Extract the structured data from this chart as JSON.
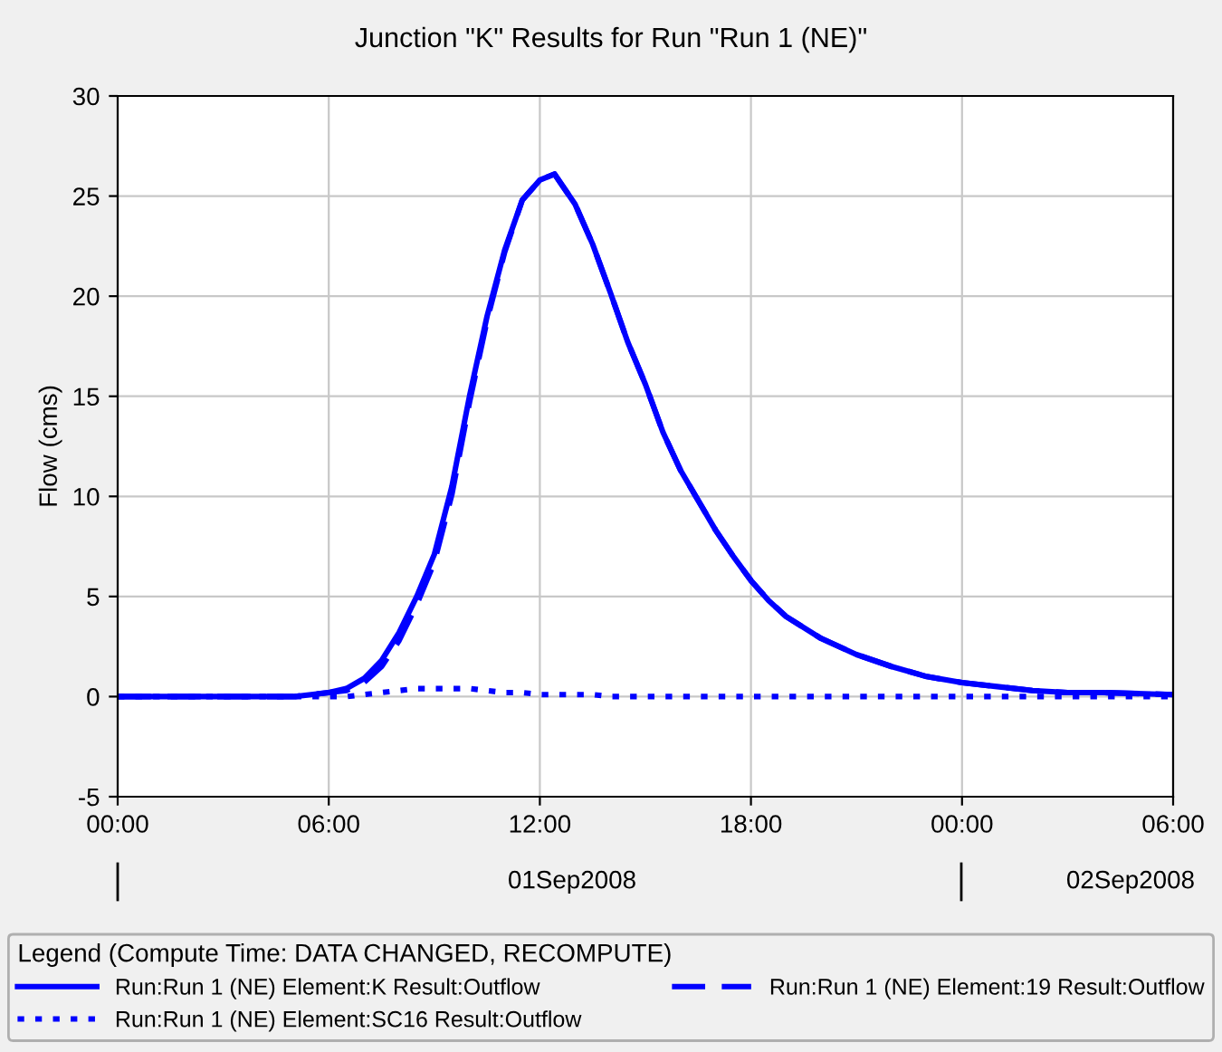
{
  "chart_data": {
    "type": "line",
    "title": "Junction \"K\" Results for Run \"Run 1 (NE)\"",
    "ylabel": "Flow (cms)",
    "x": [
      "2008-09-01T00:00",
      "2008-09-01T02:00",
      "2008-09-01T04:00",
      "2008-09-01T05:00",
      "2008-09-01T05:30",
      "2008-09-01T06:00",
      "2008-09-01T06:30",
      "2008-09-01T07:00",
      "2008-09-01T07:30",
      "2008-09-01T08:00",
      "2008-09-01T08:30",
      "2008-09-01T09:00",
      "2008-09-01T09:30",
      "2008-09-01T10:00",
      "2008-09-01T10:30",
      "2008-09-01T11:00",
      "2008-09-01T11:30",
      "2008-09-01T12:00",
      "2008-09-01T12:25",
      "2008-09-01T13:00",
      "2008-09-01T13:30",
      "2008-09-01T14:00",
      "2008-09-01T14:30",
      "2008-09-01T15:00",
      "2008-09-01T15:30",
      "2008-09-01T16:00",
      "2008-09-01T16:30",
      "2008-09-01T17:00",
      "2008-09-01T17:30",
      "2008-09-01T18:00",
      "2008-09-01T18:30",
      "2008-09-01T19:00",
      "2008-09-01T20:00",
      "2008-09-01T21:00",
      "2008-09-01T22:00",
      "2008-09-01T23:00",
      "2008-09-02T00:00",
      "2008-09-02T01:00",
      "2008-09-02T02:00",
      "2008-09-02T03:00",
      "2008-09-02T04:00",
      "2008-09-02T06:00"
    ],
    "series": [
      {
        "name": "Run:Run 1 (NE) Element:K Result:Outflow",
        "color": "#0000ff",
        "line_style": "solid",
        "values": [
          0,
          0,
          0,
          0,
          0.1,
          0.2,
          0.4,
          0.9,
          1.8,
          3.2,
          5.0,
          7.1,
          10.5,
          15.0,
          19.0,
          22.3,
          24.8,
          25.8,
          26.1,
          24.6,
          22.6,
          20.2,
          17.7,
          15.6,
          13.2,
          11.3,
          9.8,
          8.3,
          7.0,
          5.8,
          4.8,
          4.0,
          2.9,
          2.1,
          1.5,
          1.0,
          0.7,
          0.5,
          0.3,
          0.2,
          0.2,
          0.1
        ]
      },
      {
        "name": "Run:Run 1 (NE) Element:19 Result:Outflow",
        "color": "#0000ff",
        "line_style": "dashed",
        "values": [
          0,
          0,
          0,
          0,
          0.1,
          0.2,
          0.3,
          0.7,
          1.5,
          2.8,
          4.6,
          6.7,
          10.1,
          14.7,
          18.8,
          22.2,
          24.8,
          25.8,
          26.1,
          24.6,
          22.6,
          20.2,
          17.7,
          15.6,
          13.2,
          11.3,
          9.8,
          8.3,
          7.0,
          5.8,
          4.8,
          4.0,
          2.9,
          2.1,
          1.5,
          1.0,
          0.7,
          0.5,
          0.3,
          0.2,
          0.2,
          0.1
        ]
      },
      {
        "name": "Run:Run 1 (NE) Element:SC16 Result:Outflow",
        "color": "#0000ff",
        "line_style": "dotted",
        "values": [
          0,
          0,
          0,
          0,
          0,
          0,
          0,
          0.1,
          0.2,
          0.3,
          0.4,
          0.4,
          0.4,
          0.4,
          0.3,
          0.2,
          0.2,
          0.1,
          0.1,
          0.1,
          0.1,
          0,
          0,
          0,
          0,
          0,
          0,
          0,
          0,
          0,
          0,
          0,
          0,
          0,
          0,
          0,
          0,
          0,
          0,
          0,
          0,
          0
        ]
      }
    ],
    "xlim": [
      "2008-09-01T00:00",
      "2008-09-02T06:00"
    ],
    "xticks": [
      {
        "value": "2008-09-01T00:00",
        "label": "00:00"
      },
      {
        "value": "2008-09-01T06:00",
        "label": "06:00"
      },
      {
        "value": "2008-09-01T12:00",
        "label": "12:00"
      },
      {
        "value": "2008-09-01T18:00",
        "label": "18:00"
      },
      {
        "value": "2008-09-02T00:00",
        "label": "00:00"
      },
      {
        "value": "2008-09-02T06:00",
        "label": "06:00"
      }
    ],
    "ylim": [
      -5,
      30
    ],
    "yticks": [
      -5,
      0,
      5,
      10,
      15,
      20,
      25,
      30
    ],
    "grid": true,
    "legend": "bottom",
    "legend_title": "Legend (Compute Time: DATA CHANGED, RECOMPUTE)",
    "annotations": [
      "01Sep2008",
      "02Sep2008"
    ]
  }
}
